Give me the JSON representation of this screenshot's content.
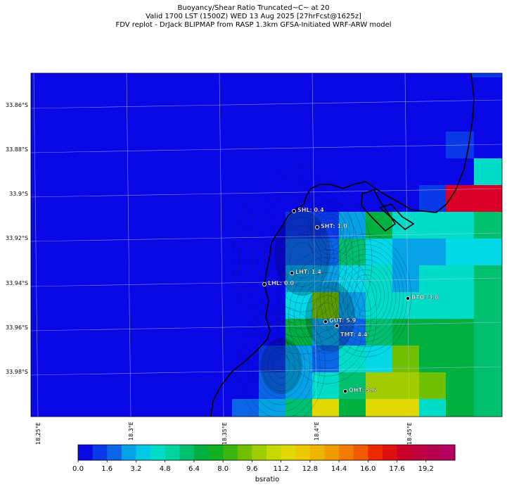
{
  "title": {
    "line1": "Buoyancy/Shear Ratio Truncated~C~    at 20",
    "line2": "Valid 1700 LST (1500Z) WED 13 Aug 2025 [27hrFcst@1625z]",
    "line3": "FDV replot - DrJack BLIPMAP from RASP 1.3km GFSA-Initiated WRF-ARW model"
  },
  "lat_labels": [
    "33.86°S",
    "33.88°S",
    "33.9°S",
    "33.92°S",
    "33.94°S",
    "33.96°S",
    "33.98°S"
  ],
  "lon_labels": [
    "18.25°E",
    "18.3°E",
    "18.35°E",
    "18.4°E",
    "18.45°E"
  ],
  "sites": [
    {
      "name": "SHL",
      "value": "SHL: 0.4"
    },
    {
      "name": "SHT",
      "value": "SHT: 1.0"
    },
    {
      "name": "LHT",
      "value": "LHT: 1.4"
    },
    {
      "name": "LHL",
      "value": "LHL: 0.0"
    },
    {
      "name": "BTO",
      "value": "BTO: 3.8"
    },
    {
      "name": "GUT",
      "value": "GUT: 5.9"
    },
    {
      "name": "TMT",
      "value": "TMT: 4.4"
    },
    {
      "name": "OHT",
      "value": "OHT: 5.6"
    }
  ],
  "colorbar": {
    "label": "bsratio",
    "ticks": [
      "0.0",
      "1.6",
      "3.2",
      "4.8",
      "6.4",
      "8.0",
      "9.6",
      "11.2",
      "12.8",
      "14.4",
      "16.0",
      "17.6",
      "19.2"
    ],
    "min": 0,
    "max": 20.8,
    "step": 0.8,
    "colors": [
      "#0a08e6",
      "#0a3ae6",
      "#0a66e6",
      "#06a2e6",
      "#02c8e6",
      "#00dcc8",
      "#00d2a0",
      "#00c070",
      "#00b040",
      "#10b020",
      "#3cb410",
      "#70c000",
      "#a0cc00",
      "#c8d800",
      "#e0d800",
      "#ecc800",
      "#eeb400",
      "#f09c00",
      "#f07c00",
      "#f05a00",
      "#ec2800",
      "#e01010",
      "#c8002a",
      "#c00040",
      "#b80050",
      "#b40060"
    ]
  },
  "map": {
    "background_color": "#0a08e6",
    "cells_colors": {
      "deep_blue": "#0a08e6",
      "blue": "#0a3ae6",
      "mid_blue": "#0a66e6",
      "light_blue": "#06a2e6",
      "cyan": "#02d8e6",
      "aqua": "#00dcc8",
      "green": "#00c070",
      "dark_green": "#00b040",
      "yellow_green": "#70c000",
      "lime": "#a0cc00",
      "yellow": "#e0d800",
      "red": "#d80028"
    }
  }
}
